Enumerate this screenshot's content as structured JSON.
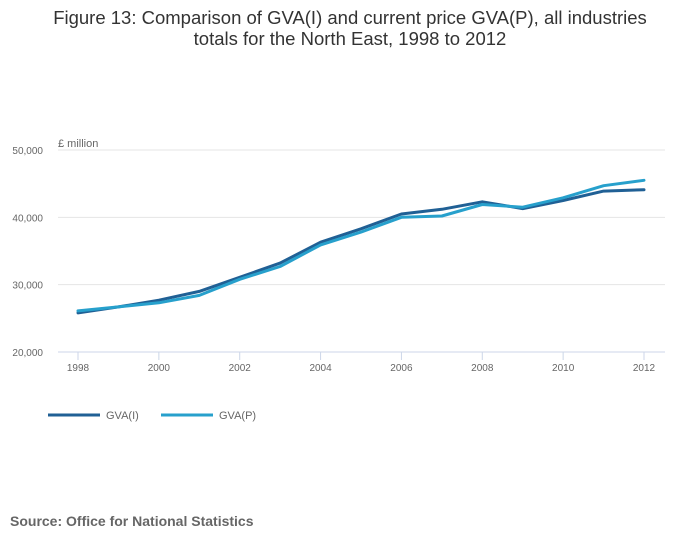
{
  "title_lines": [
    "Figure 13: Comparison of GVA(I) and current price GVA(P), all industries",
    "totals for the North East, 1998 to 2012"
  ],
  "source": "Source: Office for National Statistics",
  "chart_data": {
    "type": "line",
    "title": "Figure 13: Comparison of GVA(I) and current price GVA(P), all industries totals for the North East, 1998 to 2012",
    "xlabel": "",
    "ylabel": "£ million",
    "x": [
      1998,
      1999,
      2000,
      2001,
      2002,
      2003,
      2004,
      2005,
      2006,
      2007,
      2008,
      2009,
      2010,
      2011,
      2012
    ],
    "x_ticks": [
      "1998",
      "2000",
      "2002",
      "2004",
      "2006",
      "2008",
      "2010",
      "2012"
    ],
    "y_ticks": [
      "20,000",
      "30,000",
      "40,000",
      "50,000"
    ],
    "y_tick_values": [
      20000,
      30000,
      40000,
      50000
    ],
    "ylim": [
      20000,
      50000
    ],
    "xlim": [
      1998,
      2012
    ],
    "grid": true,
    "legend_position": "bottom-left",
    "series": [
      {
        "name": "GVA(I)",
        "color": "#206095",
        "values": [
          25800,
          26700,
          27700,
          29000,
          31100,
          33200,
          36300,
          38300,
          40500,
          41200,
          42300,
          41300,
          42500,
          43900,
          44100
        ]
      },
      {
        "name": "GVA(P)",
        "color": "#27a0cc",
        "values": [
          26100,
          26700,
          27300,
          28400,
          30800,
          32700,
          35900,
          37800,
          40000,
          40200,
          41900,
          41500,
          42900,
          44700,
          45500
        ]
      }
    ]
  }
}
